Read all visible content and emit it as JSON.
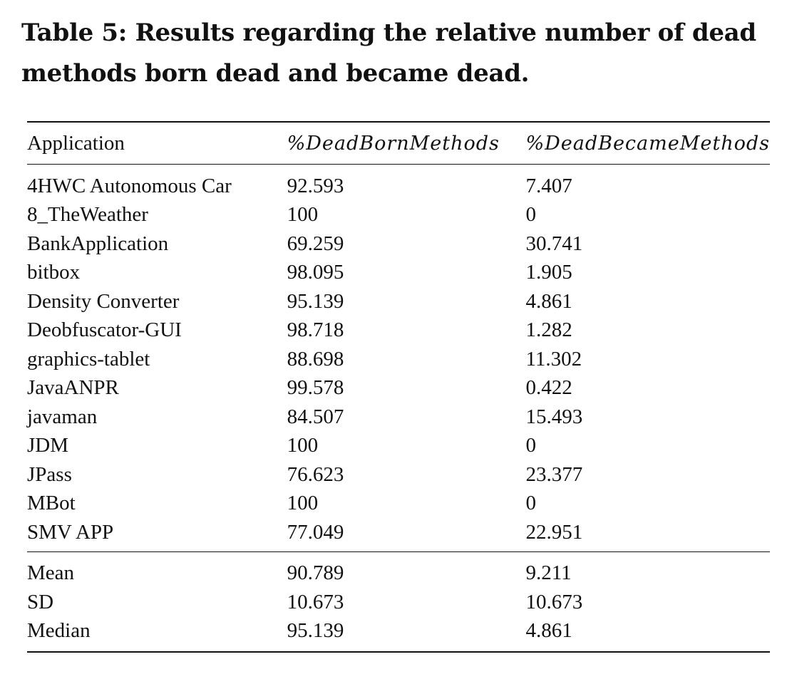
{
  "caption": "Table 5: Results regarding the relative number of dead methods born dead and became dead.",
  "table": {
    "headers": [
      "Application",
      "%DeadBornMethods",
      "%DeadBecameMethods"
    ],
    "rows": [
      [
        "4HWC Autonomous Car",
        "92.593",
        "7.407"
      ],
      [
        "8_TheWeather",
        "100",
        "0"
      ],
      [
        "BankApplication",
        "69.259",
        "30.741"
      ],
      [
        "bitbox",
        "98.095",
        "1.905"
      ],
      [
        "Density Converter",
        "95.139",
        "4.861"
      ],
      [
        "Deobfuscator-GUI",
        "98.718",
        "1.282"
      ],
      [
        "graphics-tablet",
        "88.698",
        "11.302"
      ],
      [
        "JavaANPR",
        "99.578",
        "0.422"
      ],
      [
        "javaman",
        "84.507",
        "15.493"
      ],
      [
        "JDM",
        "100",
        "0"
      ],
      [
        "JPass",
        "76.623",
        "23.377"
      ],
      [
        "MBot",
        "100",
        "0"
      ],
      [
        "SMV APP",
        "77.049",
        "22.951"
      ]
    ],
    "summary": [
      [
        "Mean",
        "90.789",
        "9.211"
      ],
      [
        "SD",
        "10.673",
        "10.673"
      ],
      [
        "Median",
        "95.139",
        "4.861"
      ]
    ]
  }
}
